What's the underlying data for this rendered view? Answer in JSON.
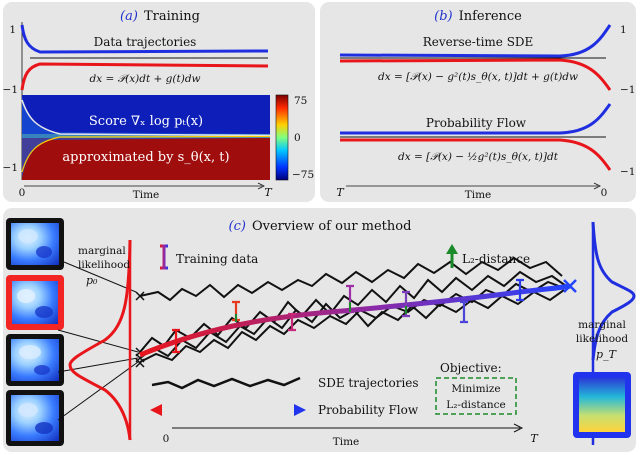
{
  "panel_a": {
    "letter": "(a)",
    "title": "Training",
    "curve_label": "Data trajectories",
    "equation": "dx = 𝒫(x)dt + g(t)dw",
    "score_label": "Score ∇ₓ log pₜ(x)",
    "approx_label": "approximated by s_θ(x, t)",
    "colorbar_max": "75",
    "colorbar_mid": "0",
    "colorbar_min": "−75",
    "y_top": "1",
    "y_bottom": "−1",
    "x_start": "0",
    "x_label": "Time",
    "x_end": "T"
  },
  "panel_b": {
    "letter": "(b)",
    "title": "Inference",
    "sde_label": "Reverse-time SDE",
    "sde_equation": "dx = [𝒫(x) − g²(t)s_θ(x, t)]dt + g(t)dw",
    "pf_label": "Probability Flow",
    "pf_equation": "dx = [𝒫(x) − ½g²(t)s_θ(x, t)]dt",
    "y_top": "1",
    "y_bottom": "−1",
    "x_start": "T",
    "x_label": "Time",
    "x_end": "0"
  },
  "panel_c": {
    "letter": "(c)",
    "title": "Overview of our method",
    "marginal_left_1": "marginal",
    "marginal_left_2": "likelihood",
    "marginal_left_3": "p₀",
    "marginal_right_1": "marginal",
    "marginal_right_2": "likelihood",
    "marginal_right_3": "p_T",
    "training_data": "Training data",
    "l2_label": "L₂-distance",
    "sde_traj": "SDE trajectories",
    "prob_flow": "Probability Flow",
    "objective_title": "Objective:",
    "objective_1": "Minimize",
    "objective_2": "L₂-distance",
    "x_start": "0",
    "x_label": "Time",
    "x_end": "T"
  },
  "colors": {
    "blue": "#1f2fe0",
    "red": "#e8161b",
    "green": "#1a8a2a",
    "purple": "#7a3fb8",
    "panel_bg": "#e6e6e6"
  }
}
